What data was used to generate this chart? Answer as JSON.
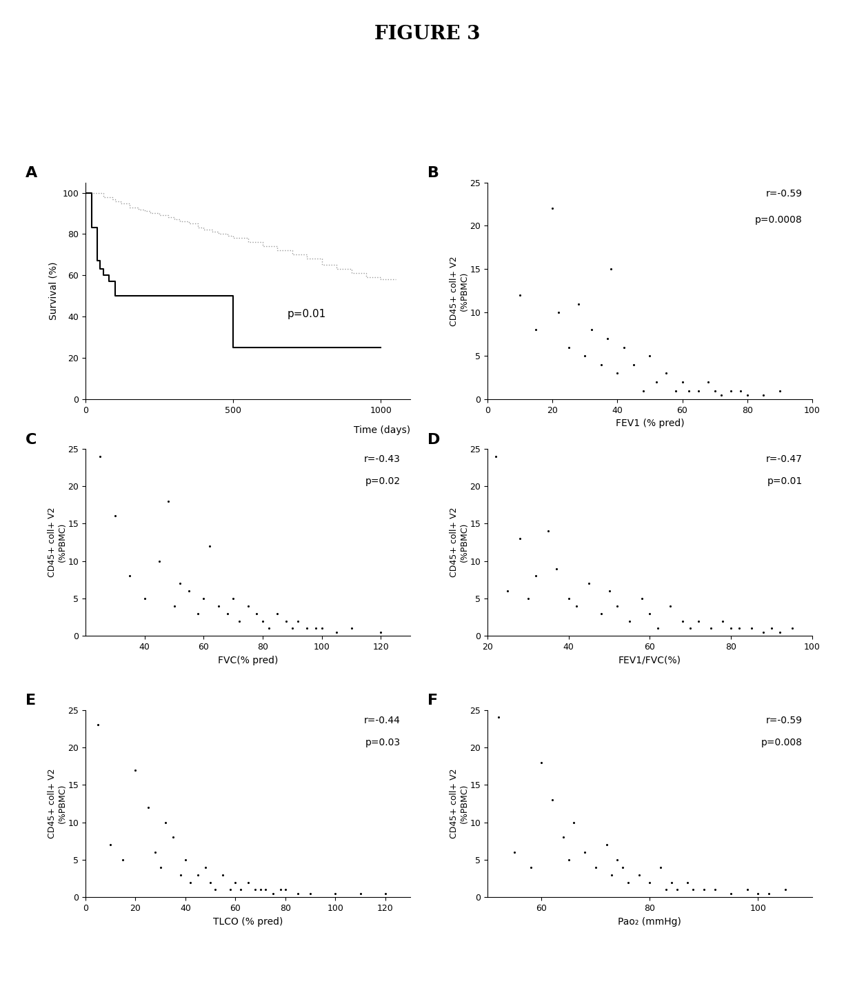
{
  "title": "FIGURE 3",
  "panel_A": {
    "xlabel": "Time (days)",
    "ylabel": "Survival (%)",
    "p_text": "p=0.01",
    "xlim": [
      0,
      1100
    ],
    "ylim": [
      0,
      105
    ],
    "xticks": [
      0,
      500,
      1000
    ],
    "yticks": [
      0,
      20,
      40,
      60,
      80,
      100
    ],
    "curve1_x": [
      0,
      30,
      60,
      90,
      100,
      120,
      150,
      180,
      200,
      220,
      250,
      280,
      300,
      320,
      350,
      380,
      400,
      430,
      450,
      480,
      500,
      550,
      600,
      650,
      700,
      750,
      800,
      850,
      900,
      950,
      1000,
      1050
    ],
    "curve1_y": [
      100,
      100,
      98,
      97,
      96,
      95,
      93,
      92,
      91,
      90,
      89,
      88,
      87,
      86,
      85,
      83,
      82,
      81,
      80,
      79,
      78,
      76,
      74,
      72,
      70,
      68,
      65,
      63,
      61,
      59,
      58,
      58
    ],
    "curve2_x": [
      0,
      20,
      40,
      50,
      60,
      80,
      100,
      200,
      300,
      400,
      500,
      600,
      700,
      800,
      900,
      1000
    ],
    "curve2_y": [
      100,
      83,
      67,
      63,
      60,
      57,
      50,
      50,
      50,
      50,
      25,
      25,
      25,
      25,
      25,
      25
    ]
  },
  "panel_B": {
    "xlabel": "FEV1 (% pred)",
    "ylabel": "CD45+ coll+ V2\n(%PBMC)",
    "r_text": "r=-0.59",
    "p_text": "p=0.0008",
    "xlim": [
      0,
      100
    ],
    "ylim": [
      0,
      25
    ],
    "xticks": [
      0,
      20,
      40,
      60,
      80,
      100
    ],
    "yticks": [
      0,
      5,
      10,
      15,
      20,
      25
    ],
    "x": [
      10,
      15,
      20,
      22,
      25,
      28,
      30,
      32,
      35,
      37,
      38,
      40,
      42,
      45,
      48,
      50,
      52,
      55,
      58,
      60,
      62,
      65,
      68,
      70,
      72,
      75,
      78,
      80,
      85,
      90
    ],
    "y": [
      12,
      8,
      22,
      10,
      6,
      11,
      5,
      8,
      4,
      7,
      15,
      3,
      6,
      4,
      1,
      5,
      2,
      3,
      1,
      2,
      1,
      1,
      2,
      1,
      0.5,
      1,
      1,
      0.5,
      0.5,
      1
    ]
  },
  "panel_C": {
    "xlabel": "FVC(% pred)",
    "ylabel": "CD45+ coll+ V2\n(%PBMC)",
    "r_text": "r=-0.43",
    "p_text": "p=0.02",
    "xlim": [
      20,
      130
    ],
    "ylim": [
      0,
      25
    ],
    "xticks": [
      40,
      60,
      80,
      100,
      120
    ],
    "yticks": [
      0,
      5,
      10,
      15,
      20,
      25
    ],
    "x": [
      25,
      30,
      35,
      40,
      45,
      48,
      50,
      52,
      55,
      58,
      60,
      62,
      65,
      68,
      70,
      72,
      75,
      78,
      80,
      82,
      85,
      88,
      90,
      92,
      95,
      98,
      100,
      105,
      110,
      120
    ],
    "y": [
      24,
      16,
      8,
      5,
      10,
      18,
      4,
      7,
      6,
      3,
      5,
      12,
      4,
      3,
      5,
      2,
      4,
      3,
      2,
      1,
      3,
      2,
      1,
      2,
      1,
      1,
      1,
      0.5,
      1,
      0.5
    ]
  },
  "panel_D": {
    "xlabel": "FEV1/FVC(%)",
    "ylabel": "CD45+ coll+ V2\n(%PBMC)",
    "r_text": "r=-0.47",
    "p_text": "p=0.01",
    "xlim": [
      20,
      100
    ],
    "ylim": [
      0,
      25
    ],
    "xticks": [
      20,
      40,
      60,
      80,
      100
    ],
    "yticks": [
      0,
      5,
      10,
      15,
      20,
      25
    ],
    "x": [
      22,
      25,
      28,
      30,
      32,
      35,
      37,
      40,
      42,
      45,
      48,
      50,
      52,
      55,
      58,
      60,
      62,
      65,
      68,
      70,
      72,
      75,
      78,
      80,
      82,
      85,
      88,
      90,
      92,
      95
    ],
    "y": [
      24,
      6,
      13,
      5,
      8,
      14,
      9,
      5,
      4,
      7,
      3,
      6,
      4,
      2,
      5,
      3,
      1,
      4,
      2,
      1,
      2,
      1,
      2,
      1,
      1,
      1,
      0.5,
      1,
      0.5,
      1
    ]
  },
  "panel_E": {
    "xlabel": "TLCO (% pred)",
    "ylabel": "CD45+ coll+ V2\n(%PBMC)",
    "r_text": "r=-0.44",
    "p_text": "p=0.03",
    "xlim": [
      0,
      130
    ],
    "ylim": [
      0,
      25
    ],
    "xticks": [
      0,
      20,
      40,
      60,
      80,
      100,
      120
    ],
    "yticks": [
      0,
      5,
      10,
      15,
      20,
      25
    ],
    "x": [
      5,
      10,
      15,
      20,
      25,
      28,
      30,
      32,
      35,
      38,
      40,
      42,
      45,
      48,
      50,
      52,
      55,
      58,
      60,
      62,
      65,
      68,
      70,
      72,
      75,
      78,
      80,
      85,
      90,
      100,
      110,
      120
    ],
    "y": [
      23,
      7,
      5,
      17,
      12,
      6,
      4,
      10,
      8,
      3,
      5,
      2,
      3,
      4,
      2,
      1,
      3,
      1,
      2,
      1,
      2,
      1,
      1,
      1,
      0.5,
      1,
      1,
      0.5,
      0.5,
      0.5,
      0.5,
      0.5
    ]
  },
  "panel_F": {
    "xlabel": "Pao₂ (mmHg)",
    "ylabel": "CD45+ coll+ V2\n(%PBMC)",
    "r_text": "r=-0.59",
    "p_text": "p=0.008",
    "xlim": [
      50,
      110
    ],
    "ylim": [
      0,
      25
    ],
    "xticks": [
      60,
      80,
      100
    ],
    "yticks": [
      0,
      5,
      10,
      15,
      20,
      25
    ],
    "x": [
      52,
      55,
      58,
      60,
      62,
      64,
      65,
      66,
      68,
      70,
      72,
      73,
      74,
      75,
      76,
      78,
      80,
      82,
      83,
      84,
      85,
      87,
      88,
      90,
      92,
      95,
      98,
      100,
      102,
      105
    ],
    "y": [
      24,
      6,
      4,
      18,
      13,
      8,
      5,
      10,
      6,
      4,
      7,
      3,
      5,
      4,
      2,
      3,
      2,
      4,
      1,
      2,
      1,
      2,
      1,
      1,
      1,
      0.5,
      1,
      0.5,
      0.5,
      1
    ]
  }
}
